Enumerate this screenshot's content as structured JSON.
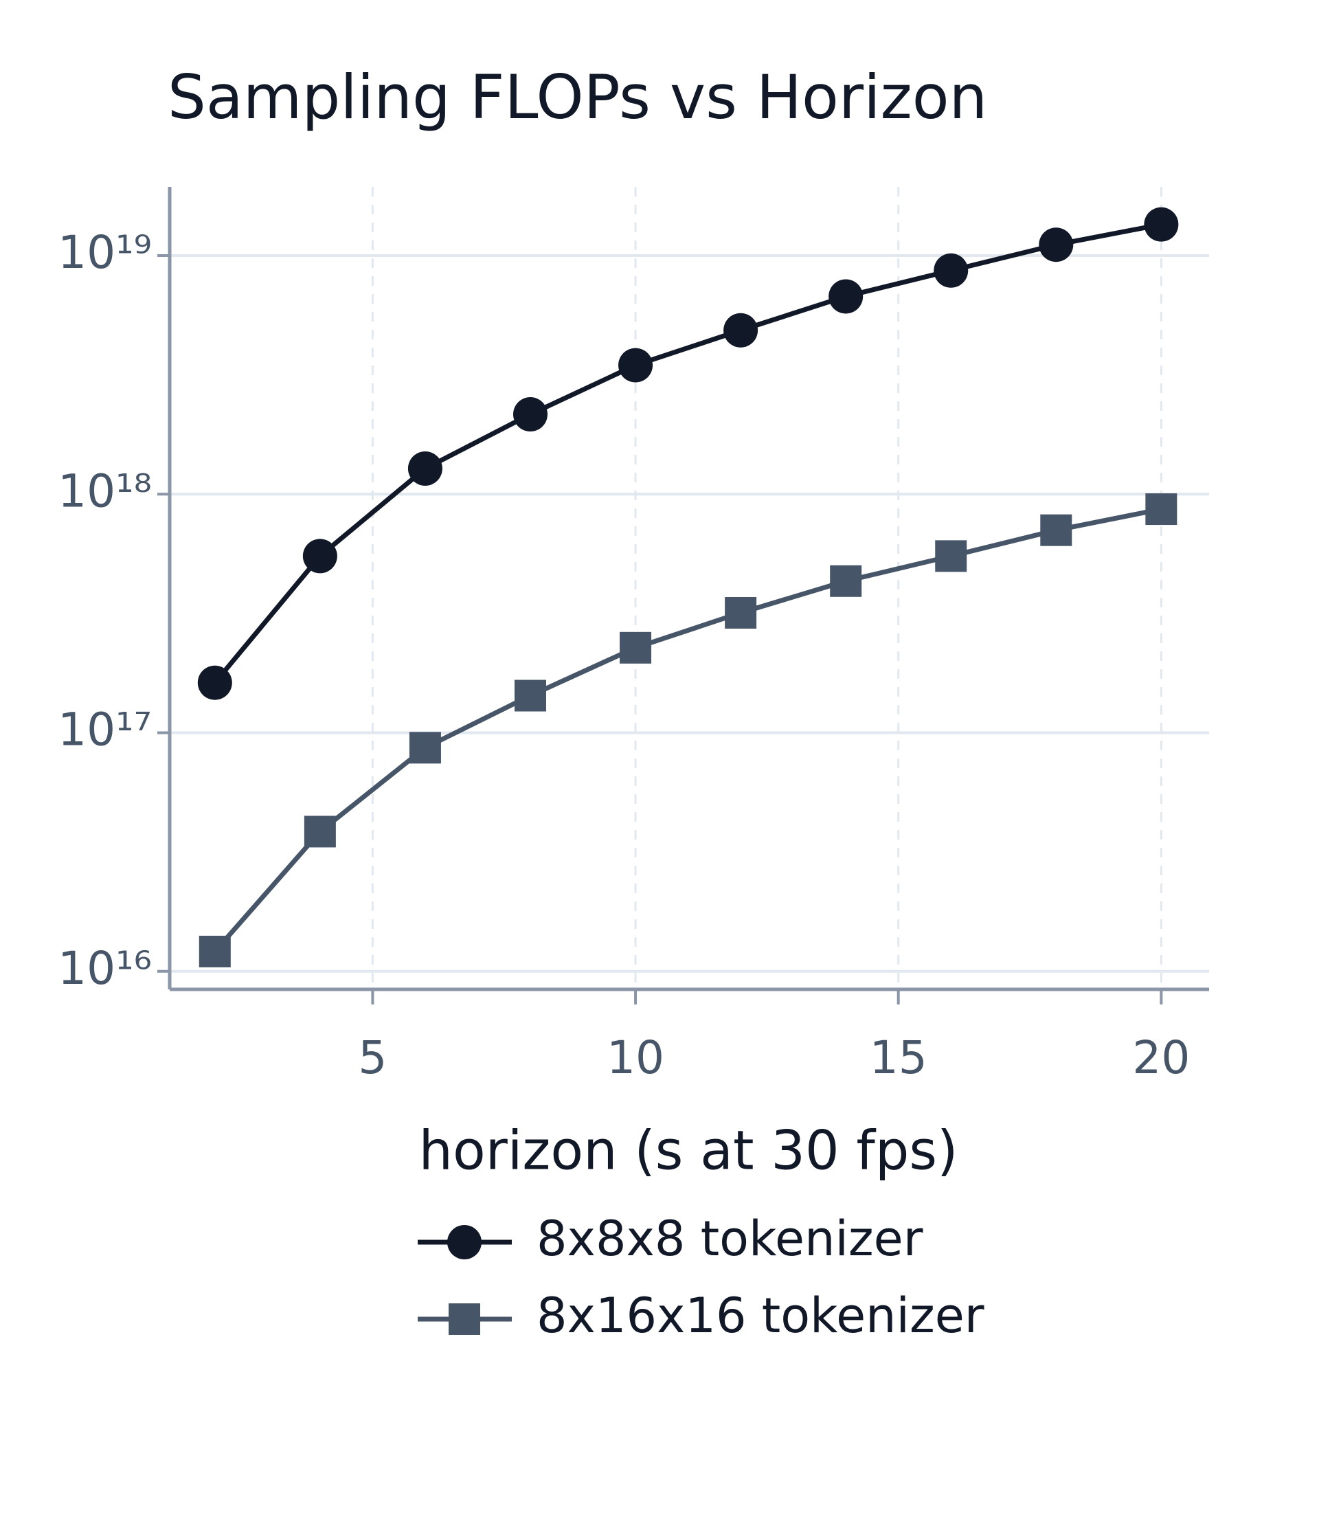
{
  "chart_data": {
    "type": "line",
    "title": "Sampling FLOPs vs Horizon",
    "x_label": "horizon (s at 30 fps)",
    "x": [
      2,
      4,
      6,
      8,
      10,
      12,
      14,
      16,
      18,
      20
    ],
    "series": [
      {
        "name": "8x8x8 tokenizer",
        "color": "#111827",
        "marker": "circle",
        "values": [
          1.62e+17,
          5.5e+17,
          1.28e+18,
          2.16e+18,
          3.47e+18,
          4.86e+18,
          6.74e+18,
          8.65e+18,
          1.11e+19,
          1.35e+19
        ]
      },
      {
        "name": "8x16x16 tokenizer",
        "color": "#475569",
        "marker": "square",
        "values": [
          1.21e+16,
          3.85e+16,
          8.65e+16,
          1.43e+17,
          2.27e+17,
          3.18e+17,
          4.32e+17,
          5.5e+17,
          7.06e+17,
          8.65e+17
        ]
      }
    ],
    "xlim": [
      1.14,
      20.91
    ],
    "xticks": [
      5,
      10,
      15,
      20
    ],
    "ylim": [
      8400000000000000.0,
      1.94e+19
    ],
    "yticks": [
      {
        "value": 1e+16,
        "label": "10¹⁶"
      },
      {
        "value": 1e+17,
        "label": "10¹⁷"
      },
      {
        "value": 1e+18,
        "label": "10¹⁸"
      },
      {
        "value": 1e+19,
        "label": "10¹⁹"
      }
    ],
    "ylog": true,
    "grid": true,
    "legend": "bottom"
  }
}
